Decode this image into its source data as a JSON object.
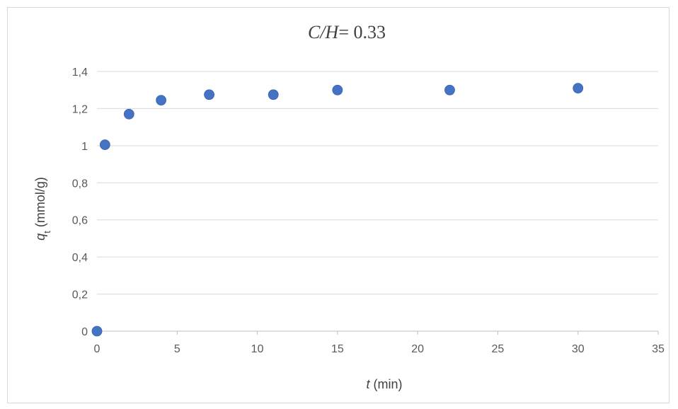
{
  "chart_data": {
    "type": "scatter",
    "title": {
      "italic": "C/H",
      "rest": "= 0.33"
    },
    "xlabel": {
      "italic": "t",
      "rest": " (min)"
    },
    "ylabel": {
      "italic": "q",
      "subscript": "t",
      "rest": " (mmol/g)"
    },
    "xlim": [
      0,
      35
    ],
    "ylim": [
      0,
      1.4
    ],
    "x_ticks": [
      "0",
      "5",
      "10",
      "15",
      "20",
      "25",
      "30",
      "35"
    ],
    "y_ticks": [
      "0",
      "0,2",
      "0,4",
      "0,6",
      "0,8",
      "1",
      "1,2",
      "1,4"
    ],
    "grid": "horizontal",
    "legend": "none",
    "marker_color": "#4472c4",
    "grid_color": "#d9d9d9",
    "points": [
      {
        "x": 0,
        "y": 0
      },
      {
        "x": 0.5,
        "y": 1.005
      },
      {
        "x": 2,
        "y": 1.17
      },
      {
        "x": 4,
        "y": 1.245
      },
      {
        "x": 7,
        "y": 1.275
      },
      {
        "x": 11,
        "y": 1.275
      },
      {
        "x": 15,
        "y": 1.3
      },
      {
        "x": 22,
        "y": 1.3
      },
      {
        "x": 30,
        "y": 1.31
      }
    ]
  }
}
